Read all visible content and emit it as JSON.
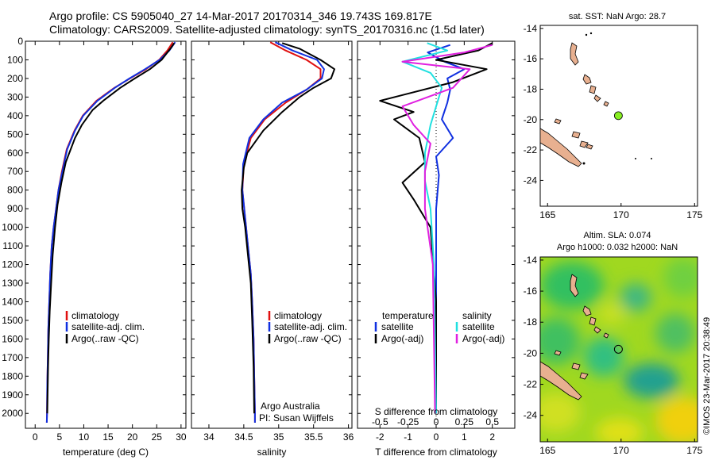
{
  "header": {
    "line1": "Argo profile: CS 5905040_27 14-Mar-2017 20170314_346 19.743S 169.817E",
    "line2": "Climatology: CARS2009. Satellite-adjusted climatology: synTS_20170316.nc (1.5d later)"
  },
  "colors": {
    "climatology": "#e01010",
    "satellite": "#1030e0",
    "argo": "#000000",
    "sal_satellite": "#20e0e0",
    "sal_argo": "#e020e0",
    "marker": "#88ee22",
    "land": "#e8b090"
  },
  "chart_data": [
    {
      "type": "line",
      "name": "temperature-profile",
      "xlabel": "temperature (deg C)",
      "ylabel": "",
      "xlim": [
        -2,
        31
      ],
      "ylim": [
        2080,
        0
      ],
      "xticks": [
        0,
        5,
        10,
        15,
        20,
        25,
        30
      ],
      "yticks": [
        0,
        100,
        200,
        300,
        400,
        500,
        600,
        700,
        800,
        900,
        1000,
        1100,
        1200,
        1300,
        1400,
        1500,
        1600,
        1700,
        1800,
        1900,
        2000
      ],
      "legend": [
        "climatology",
        "satellite-adj. clim.",
        "Argo(..raw -QC)"
      ],
      "series": [
        {
          "name": "climatology",
          "color": "#e01010",
          "x": [
            28.3,
            27.2,
            25.5,
            22.8,
            19.5,
            16.3,
            12.6,
            9.8,
            8.1,
            6.5,
            5.5,
            4.8,
            4.3,
            3.8,
            3.4,
            3.1,
            2.9,
            2.7,
            2.6,
            2.5,
            2.45,
            2.4
          ],
          "y": [
            5,
            50,
            100,
            150,
            200,
            250,
            320,
            400,
            480,
            580,
            700,
            800,
            900,
            1000,
            1100,
            1250,
            1400,
            1550,
            1700,
            1850,
            2000,
            2050
          ]
        },
        {
          "name": "satellite-adj. clim.",
          "color": "#1030e0",
          "x": [
            28.8,
            27.6,
            25.6,
            22.6,
            19.4,
            16.4,
            12.8,
            9.9,
            8.2,
            6.6,
            5.6,
            4.8,
            4.3,
            3.8,
            3.4,
            3.1,
            2.9,
            2.7,
            2.6,
            2.5,
            2.45,
            2.4
          ],
          "y": [
            5,
            50,
            100,
            150,
            200,
            250,
            320,
            400,
            480,
            580,
            700,
            800,
            900,
            1000,
            1100,
            1250,
            1400,
            1550,
            1700,
            1850,
            2000,
            2050
          ]
        },
        {
          "name": "Argo(..raw -QC)",
          "color": "#000000",
          "x": [
            28.6,
            27.8,
            26.0,
            23.6,
            20.5,
            17.5,
            14.0,
            11.8,
            9.6,
            8.2,
            6.3,
            5.4,
            4.6,
            4.1,
            3.6,
            3.3,
            3.0,
            2.8,
            2.65,
            2.55,
            2.5
          ],
          "y": [
            10,
            40,
            100,
            150,
            200,
            250,
            320,
            370,
            450,
            520,
            650,
            760,
            880,
            1000,
            1150,
            1300,
            1450,
            1600,
            1750,
            1900,
            2000
          ]
        }
      ]
    },
    {
      "type": "line",
      "name": "salinity-profile",
      "xlabel": "salinity",
      "xlim": [
        33.75,
        36.05
      ],
      "ylim": [
        2080,
        0
      ],
      "xticks": [
        34,
        34.5,
        35,
        35.5,
        36
      ],
      "legend": [
        "climatology",
        "satellite-adj. clim.",
        "Argo(..raw -QC)"
      ],
      "annotation": [
        "Argo Australia",
        "PI: Susan Wijffels"
      ],
      "series": [
        {
          "name": "climatology",
          "color": "#e01010",
          "x": [
            34.88,
            35.1,
            35.4,
            35.6,
            35.6,
            35.4,
            35.1,
            34.8,
            34.6,
            34.5,
            34.48,
            34.52,
            34.56,
            34.6,
            34.62,
            34.64,
            34.65,
            34.66,
            34.66
          ],
          "y": [
            5,
            50,
            100,
            150,
            200,
            260,
            330,
            420,
            520,
            660,
            800,
            950,
            1100,
            1250,
            1400,
            1600,
            1800,
            2000,
            2050
          ]
        },
        {
          "name": "satellite-adj. clim.",
          "color": "#1030e0",
          "x": [
            34.95,
            35.2,
            35.55,
            35.65,
            35.62,
            35.4,
            35.05,
            34.78,
            34.58,
            34.49,
            34.48,
            34.52,
            34.56,
            34.6,
            34.62,
            34.64,
            34.65,
            34.66,
            34.66
          ],
          "y": [
            5,
            50,
            100,
            150,
            200,
            260,
            330,
            420,
            520,
            660,
            800,
            950,
            1100,
            1250,
            1400,
            1600,
            1800,
            2000,
            2050
          ]
        },
        {
          "name": "Argo(..raw -QC)",
          "color": "#000000",
          "x": [
            35.05,
            35.3,
            35.6,
            35.8,
            35.75,
            35.5,
            35.3,
            35.05,
            34.78,
            34.55,
            34.5,
            34.47,
            34.48,
            34.52,
            34.56,
            34.6,
            34.62,
            34.64,
            34.65
          ],
          "y": [
            10,
            40,
            100,
            150,
            200,
            250,
            300,
            380,
            480,
            600,
            680,
            800,
            900,
            1000,
            1150,
            1300,
            1500,
            1750,
            2000
          ]
        }
      ]
    },
    {
      "type": "line",
      "name": "difference-profile",
      "xlabel": "T difference from climatology",
      "top_xlabel": "S difference from climatology",
      "xlim": [
        -2.8,
        2.8
      ],
      "ylim": [
        2080,
        0
      ],
      "xticks": [
        -2,
        -1,
        0,
        1,
        2
      ],
      "top_ticks": [
        -0.5,
        -0.25,
        0,
        0.25,
        0.5
      ],
      "legend_temperature_title": "temperature",
      "legend_salinity_title": "salinity",
      "legend": [
        "satellite",
        "Argo(-adj)",
        "satellite",
        "Argo(-adj)"
      ],
      "series": [
        {
          "name": "temperature satellite",
          "color": "#1030e0",
          "x": [
            0.5,
            -0.3,
            0.3,
            1.0,
            0.4,
            0.5,
            0.4,
            0.2,
            0.6,
            0.0,
            0.1,
            0.0,
            0.0,
            0.0,
            0.0,
            0.0
          ],
          "y": [
            20,
            60,
            110,
            150,
            200,
            260,
            330,
            420,
            520,
            620,
            720,
            900,
            1100,
            1400,
            1700,
            2000
          ]
        },
        {
          "name": "temperature Argo(-adj)",
          "color": "#000000",
          "x": [
            2.0,
            1.5,
            0.0,
            1.8,
            0.6,
            -2.0,
            -0.8,
            -1.5,
            -0.6,
            -0.4,
            -1.2,
            -0.8,
            -0.2,
            -0.1,
            0.0,
            0.0,
            0.0
          ],
          "y": [
            10,
            50,
            100,
            150,
            220,
            320,
            380,
            420,
            520,
            650,
            760,
            850,
            1000,
            1200,
            1400,
            1700,
            2000
          ]
        },
        {
          "name": "salinity satellite",
          "color": "#20e0e0",
          "x": [
            -0.08,
            0.1,
            -0.3,
            -0.05,
            0.05,
            0.0,
            -0.05,
            -0.1,
            -0.1,
            -0.05,
            -0.02,
            -0.01,
            0.0
          ],
          "y": [
            10,
            50,
            110,
            170,
            250,
            350,
            450,
            600,
            750,
            900,
            1200,
            1600,
            2000
          ]
        },
        {
          "name": "salinity Argo(-adj)",
          "color": "#e020e0",
          "x": [
            0.5,
            0.25,
            -0.3,
            0.3,
            0.15,
            -0.3,
            -0.2,
            -0.05,
            -0.1,
            -0.1,
            -0.03,
            -0.02,
            -0.01
          ],
          "y": [
            20,
            60,
            110,
            150,
            250,
            350,
            450,
            550,
            700,
            900,
            1200,
            1600,
            2000
          ]
        }
      ]
    },
    {
      "type": "scatter",
      "name": "map-sst",
      "title": "sat. SST: NaN Argo: 28.7",
      "xlim": [
        164.5,
        175.2
      ],
      "ylim": [
        -25.7,
        -13.8
      ],
      "xticks": [
        165,
        170,
        175
      ],
      "yticks": [
        -14,
        -16,
        -18,
        -20,
        -22,
        -24
      ],
      "marker": {
        "lon": 169.817,
        "lat": -19.743
      }
    },
    {
      "type": "heatmap",
      "name": "map-sla",
      "title_line1": "Altim. SLA: 0.074",
      "title_line2": "Argo h1000: 0.032 h2000: NaN",
      "xlim": [
        164.5,
        175.2
      ],
      "ylim": [
        -25.7,
        -13.8
      ],
      "xticks": [
        165,
        170,
        175
      ],
      "yticks": [
        -14,
        -16,
        -18,
        -20,
        -22,
        -24
      ],
      "marker": {
        "lon": 169.817,
        "lat": -19.743
      }
    }
  ],
  "credit": "©IMOS 23-Mar-2017 20:38:49"
}
